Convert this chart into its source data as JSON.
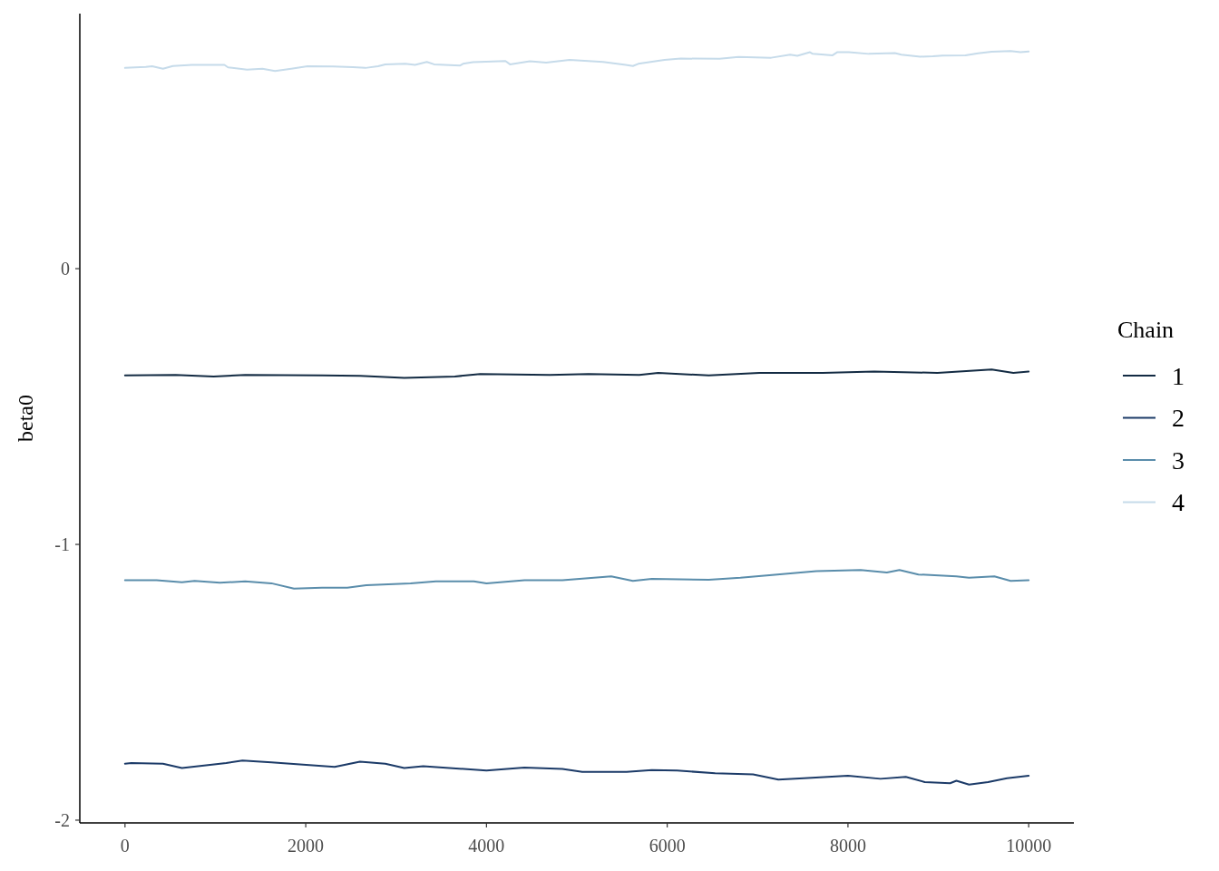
{
  "chart_data": {
    "type": "line",
    "ylabel": "beta0",
    "legend_title": "Chain",
    "legend": "right",
    "xlim": [
      -500,
      10500
    ],
    "xticks": [
      0,
      2000,
      4000,
      6000,
      8000,
      10000
    ],
    "ylim": [
      -2.01,
      0.925
    ],
    "yticks": [
      -2,
      -1,
      0
    ],
    "series": [
      {
        "name": "1",
        "color": "#132b43",
        "x": [
          0,
          560,
          980,
          1330,
          2180,
          2600,
          3090,
          3650,
          3930,
          4700,
          5130,
          5690,
          5900,
          6460,
          7020,
          7720,
          8290,
          8990,
          9590,
          9830,
          10000
        ],
        "values": [
          -0.387,
          -0.385,
          -0.391,
          -0.385,
          -0.387,
          -0.389,
          -0.396,
          -0.391,
          -0.382,
          -0.385,
          -0.382,
          -0.385,
          -0.378,
          -0.387,
          -0.378,
          -0.378,
          -0.373,
          -0.378,
          -0.366,
          -0.378,
          -0.373
        ]
      },
      {
        "name": "2",
        "color": "#1c3b68",
        "x": [
          0,
          70,
          420,
          630,
          1120,
          1300,
          1620,
          2320,
          2600,
          2880,
          3090,
          3300,
          4000,
          4420,
          4840,
          5060,
          5550,
          5830,
          6110,
          6530,
          6950,
          7230,
          7510,
          8000,
          8360,
          8640,
          8850,
          9130,
          9200,
          9340,
          9550,
          9760,
          10000
        ],
        "values": [
          -1.795,
          -1.793,
          -1.795,
          -1.811,
          -1.793,
          -1.784,
          -1.79,
          -1.807,
          -1.788,
          -1.795,
          -1.811,
          -1.804,
          -1.82,
          -1.809,
          -1.814,
          -1.825,
          -1.825,
          -1.818,
          -1.82,
          -1.83,
          -1.834,
          -1.853,
          -1.848,
          -1.839,
          -1.85,
          -1.843,
          -1.862,
          -1.866,
          -1.857,
          -1.871,
          -1.862,
          -1.848,
          -1.839
        ]
      },
      {
        "name": "3",
        "color": "#5a8dab",
        "x": [
          0,
          350,
          630,
          770,
          1050,
          1330,
          1620,
          1870,
          2180,
          2460,
          2670,
          3160,
          3440,
          3860,
          4000,
          4420,
          4840,
          5380,
          5620,
          5830,
          6460,
          6810,
          7160,
          7650,
          8140,
          8430,
          8570,
          8780,
          9200,
          9340,
          9620,
          9800,
          10000
        ],
        "values": [
          -1.13,
          -1.13,
          -1.137,
          -1.132,
          -1.139,
          -1.134,
          -1.141,
          -1.16,
          -1.157,
          -1.157,
          -1.148,
          -1.141,
          -1.134,
          -1.134,
          -1.141,
          -1.13,
          -1.13,
          -1.116,
          -1.132,
          -1.125,
          -1.128,
          -1.121,
          -1.111,
          -1.097,
          -1.093,
          -1.102,
          -1.093,
          -1.109,
          -1.116,
          -1.121,
          -1.116,
          -1.132,
          -1.13
        ]
      },
      {
        "name": "4",
        "color": "#c6dbea",
        "x": [
          0,
          230,
          300,
          420,
          530,
          740,
          1100,
          1140,
          1350,
          1520,
          1660,
          1840,
          2020,
          2300,
          2520,
          2660,
          2800,
          2880,
          3100,
          3210,
          3340,
          3420,
          3710,
          3740,
          3850,
          4210,
          4260,
          4480,
          4660,
          4920,
          5290,
          5540,
          5620,
          5680,
          5970,
          6150,
          6580,
          6790,
          7150,
          7360,
          7440,
          7580,
          7610,
          7830,
          7880,
          8010,
          8230,
          8520,
          8590,
          8800,
          8940,
          9050,
          9300,
          9440,
          9590,
          9800,
          9910,
          10000
        ],
        "values": [
          0.728,
          0.732,
          0.734,
          0.725,
          0.735,
          0.739,
          0.739,
          0.73,
          0.722,
          0.725,
          0.717,
          0.725,
          0.734,
          0.733,
          0.731,
          0.728,
          0.734,
          0.741,
          0.743,
          0.739,
          0.75,
          0.741,
          0.737,
          0.743,
          0.749,
          0.753,
          0.741,
          0.752,
          0.747,
          0.757,
          0.75,
          0.739,
          0.735,
          0.743,
          0.757,
          0.762,
          0.761,
          0.768,
          0.765,
          0.776,
          0.772,
          0.785,
          0.779,
          0.774,
          0.785,
          0.785,
          0.779,
          0.782,
          0.776,
          0.769,
          0.77,
          0.773,
          0.774,
          0.781,
          0.787,
          0.789,
          0.785,
          0.788
        ]
      }
    ]
  }
}
